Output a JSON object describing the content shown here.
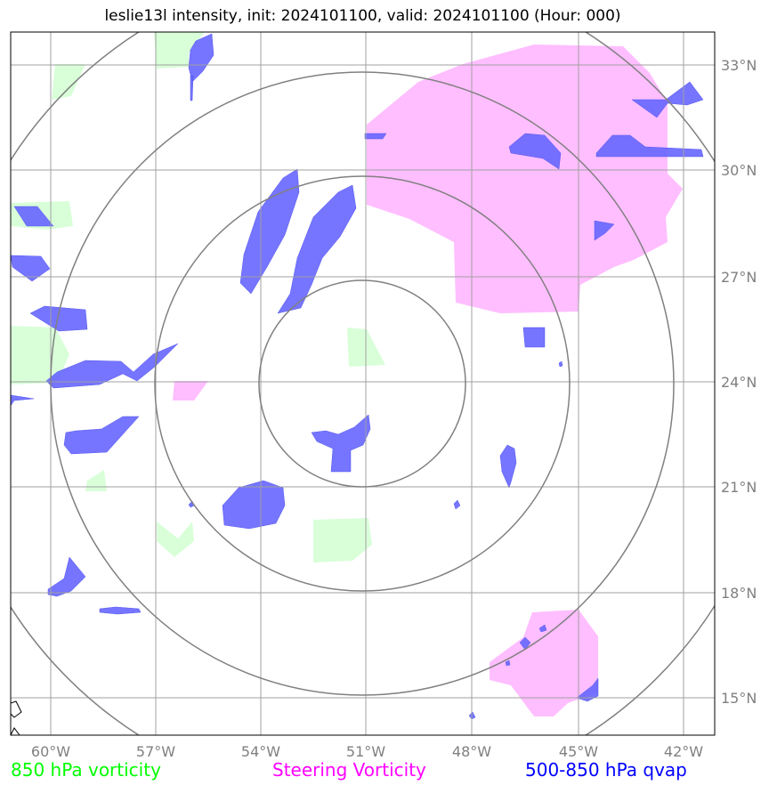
{
  "title": "leslie13l intensity, init: 2024101100, valid: 2024101100 (Hour: 000)",
  "map": {
    "lon_ticks": [
      "60°W",
      "57°W",
      "54°W",
      "51°W",
      "48°W",
      "45°W",
      "42°W"
    ],
    "lat_ticks": [
      "33°N",
      "30°N",
      "27°N",
      "24°N",
      "21°N",
      "18°N",
      "15°N"
    ],
    "center": {
      "lon": -51.0,
      "lat": 24.0
    },
    "range_rings_deg": [
      3,
      6,
      9,
      12
    ]
  },
  "legend": {
    "vorticity_850": "850 hPa vorticity",
    "steering_vorticity": "Steering Vorticity",
    "qvap_500_850": "500-850 hPa qvap"
  },
  "colors": {
    "vorticity_850": "#00ff00",
    "steering_vorticity": "#ff00ff",
    "qvap_500_850": "#0000ff",
    "grid": "#a0a0a0",
    "rings": "#808080"
  }
}
